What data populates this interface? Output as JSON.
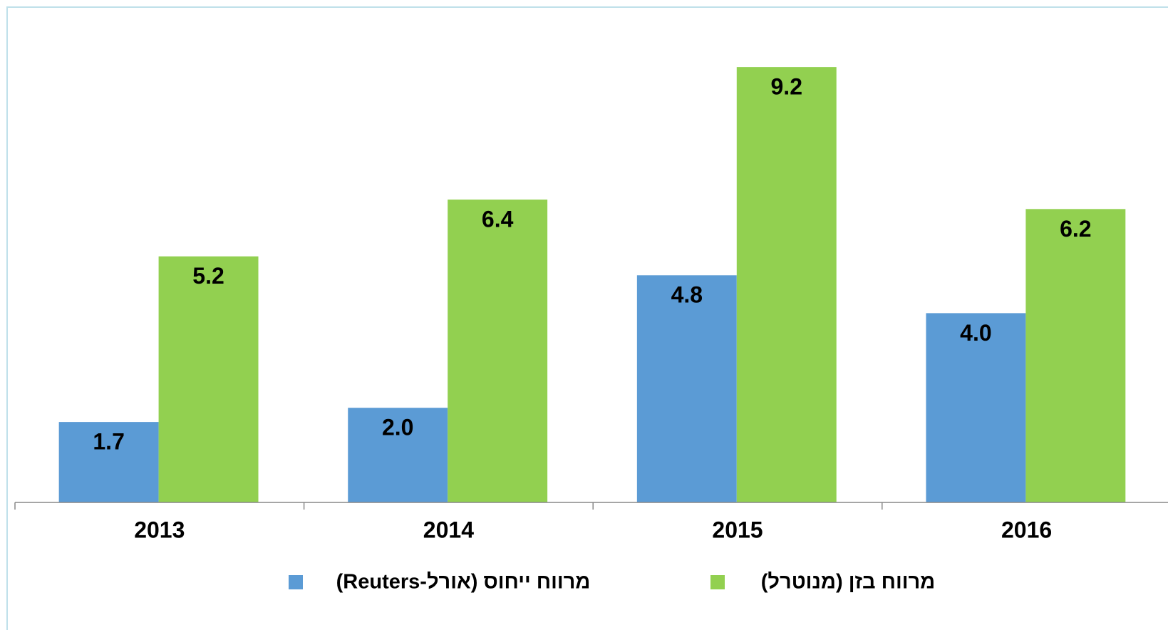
{
  "chart_data": {
    "type": "bar",
    "categories": [
      "2013",
      "2014",
      "2015",
      "2016"
    ],
    "series": [
      {
        "name": "מרווח ייחוס (אורל-Reuters)",
        "color": "#5b9bd5",
        "values": [
          1.7,
          2.0,
          4.8,
          4.0
        ],
        "value_labels": [
          "1.7",
          "2.0",
          "4.8",
          "4.0"
        ]
      },
      {
        "name": "מרווח בזן (מנוטרל)",
        "color": "#92d050",
        "values": [
          5.2,
          6.4,
          9.2,
          6.2
        ],
        "value_labels": [
          "5.2",
          "6.4",
          "9.2",
          "6.2"
        ]
      }
    ],
    "ylim": [
      0,
      10
    ],
    "legend": "bottom"
  }
}
